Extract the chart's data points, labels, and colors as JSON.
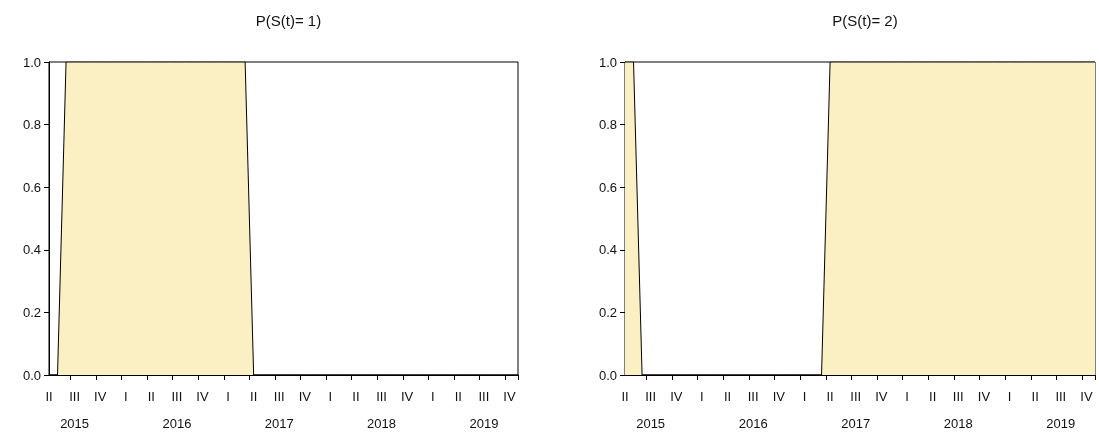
{
  "chart_data": [
    {
      "type": "area",
      "title": "P(S(t)= 1)",
      "categories": [
        "II",
        null,
        null,
        "III\n2015",
        null,
        null,
        "IV",
        null,
        null,
        "I",
        null,
        null,
        "II",
        null,
        null,
        "III\n2016",
        null,
        null,
        "IV",
        null,
        null,
        "I",
        null,
        null,
        "II",
        null,
        null,
        "III\n2017",
        null,
        null,
        "IV",
        null,
        null,
        "I",
        null,
        null,
        "II",
        null,
        null,
        "III\n2018",
        null,
        null,
        "IV",
        null,
        null,
        "I",
        null,
        null,
        "II",
        null,
        null,
        "III\n2019",
        null,
        null,
        "IV",
        null
      ],
      "series": [
        {
          "color": "#fbf0c3",
          "values": [
            0,
            0,
            1,
            1,
            1,
            1,
            1,
            1,
            1,
            1,
            1,
            1,
            1,
            1,
            1,
            1,
            1,
            1,
            1,
            1,
            1,
            1,
            1,
            1,
            0,
            0,
            0,
            0,
            0,
            0,
            0,
            0,
            0,
            0,
            0,
            0,
            0,
            0,
            0,
            0,
            0,
            0,
            0,
            0,
            0,
            0,
            0,
            0,
            0,
            0,
            0,
            0,
            0,
            0,
            0,
            0
          ]
        }
      ],
      "ylim": [
        0,
        1
      ],
      "yticks": [
        {
          "value": 0,
          "label": "0.0"
        },
        {
          "value": 0.2,
          "label": "0.2"
        },
        {
          "value": 0.4,
          "label": "0.4"
        },
        {
          "value": 0.6,
          "label": "0.6"
        },
        {
          "value": 0.8,
          "label": "0.8"
        },
        {
          "value": 1,
          "label": "1.0"
        }
      ],
      "grid": false
    },
    {
      "type": "area",
      "title": "P(S(t)= 2)",
      "categories": [
        "II",
        null,
        null,
        "III\n2015",
        null,
        null,
        "IV",
        null,
        null,
        "I",
        null,
        null,
        "II",
        null,
        null,
        "III\n2016",
        null,
        null,
        "IV",
        null,
        null,
        "I",
        null,
        null,
        "II",
        null,
        null,
        "III\n2017",
        null,
        null,
        "IV",
        null,
        null,
        "I",
        null,
        null,
        "II",
        null,
        null,
        "III\n2018",
        null,
        null,
        "IV",
        null,
        null,
        "I",
        null,
        null,
        "II",
        null,
        null,
        "III\n2019",
        null,
        null,
        "IV",
        null
      ],
      "series": [
        {
          "color": "#fbf0c3",
          "values": [
            1,
            1,
            0,
            0,
            0,
            0,
            0,
            0,
            0,
            0,
            0,
            0,
            0,
            0,
            0,
            0,
            0,
            0,
            0,
            0,
            0,
            0,
            0,
            0,
            1,
            1,
            1,
            1,
            1,
            1,
            1,
            1,
            1,
            1,
            1,
            1,
            1,
            1,
            1,
            1,
            1,
            1,
            1,
            1,
            1,
            1,
            1,
            1,
            1,
            1,
            1,
            1,
            1,
            1,
            1,
            1
          ]
        }
      ],
      "ylim": [
        0,
        1
      ],
      "yticks": [
        {
          "value": 0,
          "label": "0.0"
        },
        {
          "value": 0.2,
          "label": "0.2"
        },
        {
          "value": 0.4,
          "label": "0.4"
        },
        {
          "value": 0.6,
          "label": "0.6"
        },
        {
          "value": 0.8,
          "label": "0.8"
        },
        {
          "value": 1,
          "label": "1.0"
        }
      ],
      "grid": false
    }
  ]
}
